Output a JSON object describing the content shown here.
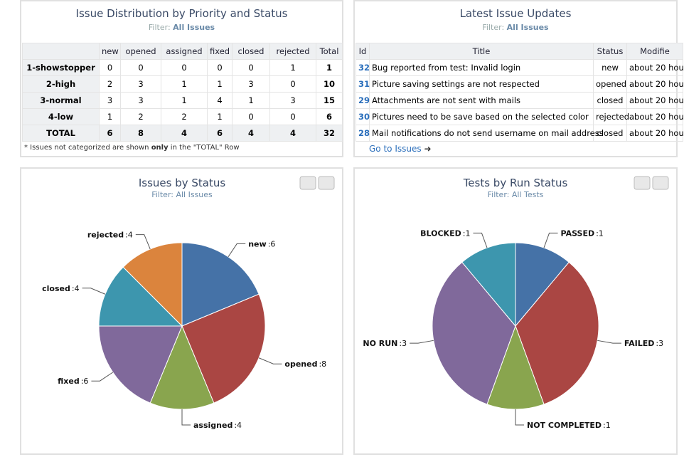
{
  "issue_distribution": {
    "title": "Issue Distribution by Priority and Status",
    "filter_label": "Filter:",
    "filter": "All Issues",
    "columns": [
      "new",
      "opened",
      "assigned",
      "fixed",
      "closed",
      "rejected",
      "Total"
    ],
    "rows": [
      [
        "1-showstopper",
        0,
        0,
        0,
        0,
        0,
        1,
        1
      ],
      [
        "2-high",
        2,
        3,
        1,
        1,
        3,
        0,
        10
      ],
      [
        "3-normal",
        3,
        3,
        1,
        4,
        1,
        3,
        15
      ],
      [
        "4-low",
        1,
        2,
        2,
        1,
        0,
        0,
        6
      ],
      [
        "TOTAL",
        6,
        8,
        4,
        6,
        4,
        4,
        32
      ]
    ],
    "footnote": [
      "* Issues not categorized are shown ",
      "only",
      " in the \"TOTAL\" Row"
    ]
  },
  "latest_updates": {
    "title": "Latest Issue Updates",
    "filter_label": "Filter:",
    "filter": "All Issues",
    "columns": [
      "Id",
      "Title",
      "Status",
      "Modifie"
    ],
    "rows": [
      [
        32,
        "Bug reported from test: Invalid login",
        "new",
        "about 20 hou"
      ],
      [
        31,
        "Picture saving settings are not respected",
        "opened",
        "about 20 hou"
      ],
      [
        29,
        "Attachments are not sent with mails",
        "closed",
        "about 20 hou"
      ],
      [
        30,
        "Pictures need to be save based on the selected color",
        "rejected",
        "about 20 hou"
      ],
      [
        28,
        "Mail notifications do not send username on mail address",
        "closed",
        "about 20 hou"
      ]
    ],
    "link": "Go to Issues"
  },
  "chart_data": [
    {
      "type": "pie",
      "title": "Issues by Status",
      "subtitle": "Filter: All Issues",
      "categories": [
        "new",
        "opened",
        "assigned",
        "fixed",
        "closed",
        "rejected"
      ],
      "values": [
        6,
        8,
        4,
        6,
        4,
        4
      ],
      "value_labels": [
        ":6",
        ":8",
        ":4",
        ":6",
        ":4",
        ":4"
      ],
      "colors": [
        "#4572a7",
        "#aa4643",
        "#89a54e",
        "#80699b",
        "#3d96ae",
        "#db843d"
      ]
    },
    {
      "type": "pie",
      "title": "Tests by Run Status",
      "subtitle": "Filter: All Tests",
      "categories": [
        "PASSED",
        "FAILED",
        "NOT COMPLETED",
        "NO RUN",
        "BLOCKED"
      ],
      "values": [
        1,
        3,
        1,
        3,
        1
      ],
      "value_labels": [
        ":1",
        ":3",
        ":1",
        ":3",
        ":1"
      ],
      "colors": [
        "#4572a7",
        "#aa4643",
        "#89a54e",
        "#80699b",
        "#3d96ae"
      ]
    }
  ]
}
